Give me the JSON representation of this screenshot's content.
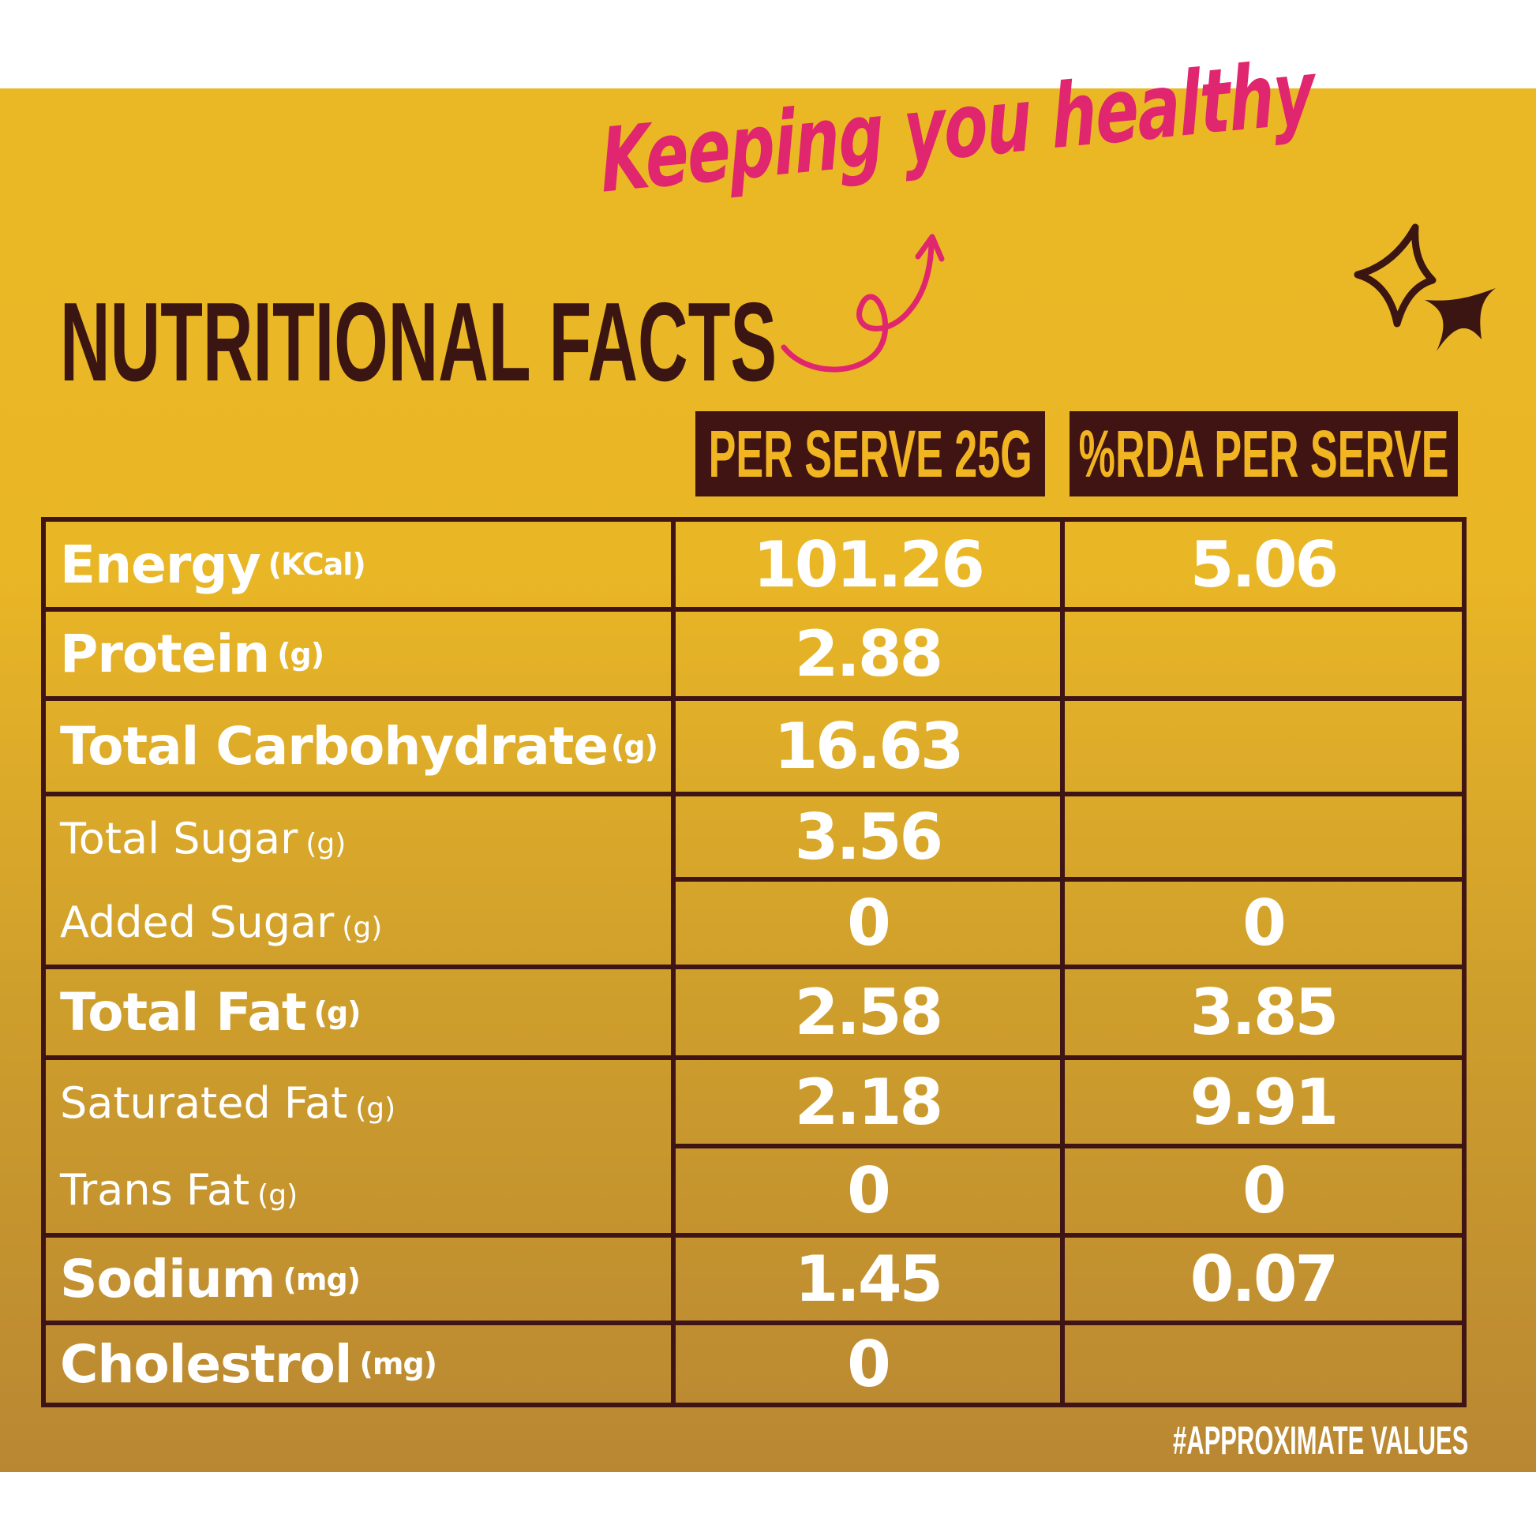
{
  "tagline": "Keeping you healthy",
  "title": "NUTRITIONAL FACTS",
  "headers": {
    "per_serve": "PER SERVE 25G",
    "rda": "%RDA PER SERVE"
  },
  "rows": [
    {
      "label": "Energy",
      "unit": "(KCal)",
      "per_serve": "101.26",
      "rda": "5.06"
    },
    {
      "label": "Protein",
      "unit": "(g)",
      "per_serve": "2.88",
      "rda": ""
    },
    {
      "label": "Total Carbohydrate",
      "unit": "(g)",
      "per_serve": "16.63",
      "rda": ""
    },
    {
      "label": "Total Sugar",
      "unit": "(g)",
      "per_serve": "3.56",
      "rda": ""
    },
    {
      "label": "Added Sugar",
      "unit": "(g)",
      "per_serve": "0",
      "rda": "0"
    },
    {
      "label": "Total Fat",
      "unit": "(g)",
      "per_serve": "2.58",
      "rda": "3.85"
    },
    {
      "label": "Saturated Fat",
      "unit": "(g)",
      "per_serve": "2.18",
      "rda": "9.91"
    },
    {
      "label": "Trans Fat",
      "unit": "(g)",
      "per_serve": "0",
      "rda": "0"
    },
    {
      "label": "Sodium",
      "unit": "(mg)",
      "per_serve": "1.45",
      "rda": "0.07"
    },
    {
      "label": "Cholestrol",
      "unit": "(mg)",
      "per_serve": "0",
      "rda": ""
    }
  ],
  "footnote": "#APPROXIMATE VALUES",
  "colors": {
    "background_top": "#ebb825",
    "background_bottom": "#b98732",
    "dark": "#3f1414",
    "pink": "#e0266e",
    "header_text": "#f2b522",
    "value_text": "#ffffff"
  },
  "icons": [
    "swirl-arrow-icon",
    "sparkle-stars-icon"
  ]
}
